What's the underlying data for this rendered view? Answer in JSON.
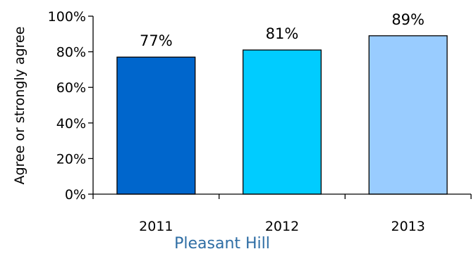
{
  "chart_data": {
    "type": "bar",
    "categories": [
      "2011",
      "2012",
      "2013"
    ],
    "values": [
      77,
      81,
      89
    ],
    "data_labels": [
      "77%",
      "81%",
      "89%"
    ],
    "colors": [
      "#0066cc",
      "#00ccff",
      "#99ccff"
    ],
    "ylabel": "Agree or strongly agree",
    "xlabel": "Pleasant Hill",
    "ylim": [
      0,
      100
    ],
    "yticks": [
      0,
      20,
      40,
      60,
      80,
      100
    ],
    "ytick_labels": [
      "0%",
      "20%",
      "40%",
      "60%",
      "80%",
      "100%"
    ],
    "grid": false,
    "legend": "none",
    "xlabel_color": "#2e6da4"
  }
}
